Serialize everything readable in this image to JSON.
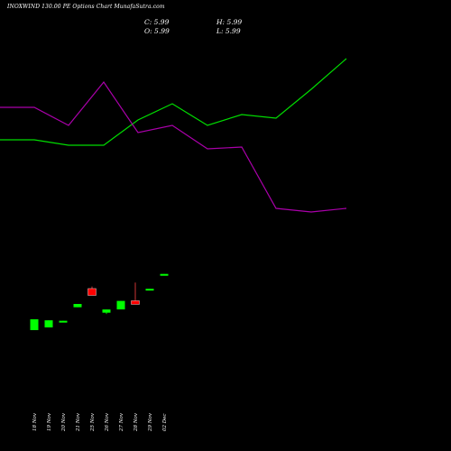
{
  "header": {
    "title": "INOXWIND 130.00 PE Options  Chart MunafaSutra.com"
  },
  "ohlc": {
    "close": "C: 5.99",
    "high": "H: 5.99",
    "open": "O: 5.99",
    "low": "L: 5.99"
  },
  "colors": {
    "background": "#000000",
    "up": "#00ff00",
    "down": "#ff0000",
    "green_line": "#00dd00",
    "purple_line": "#aa00aa"
  },
  "chart_data": {
    "type": "candlestick",
    "categories": [
      "18 Nov",
      "19 Nov",
      "20 Nov",
      "21 Nov",
      "25 Nov",
      "26 Nov",
      "27 Nov",
      "28 Nov",
      "29 Nov",
      "02 Dec"
    ],
    "candles": [
      {
        "open": 0.62,
        "close": 2.47,
        "high": 2.47,
        "low": 0.62,
        "dir": "up"
      },
      {
        "open": 1.08,
        "close": 2.29,
        "high": 2.29,
        "low": 1.08,
        "dir": "up"
      },
      {
        "open": 2.04,
        "close": 2.21,
        "high": 2.21,
        "low": 2.04,
        "dir": "up"
      },
      {
        "open": 4.52,
        "close": 5.08,
        "high": 5.08,
        "low": 4.52,
        "dir": "up"
      },
      {
        "open": 7.7,
        "close": 6.54,
        "high": 8.05,
        "low": 6.54,
        "dir": "down"
      },
      {
        "open": 3.59,
        "close": 4.14,
        "high": 4.14,
        "low": 3.37,
        "dir": "up"
      },
      {
        "open": 4.15,
        "close": 5.6,
        "high": 5.6,
        "low": 4.15,
        "dir": "up"
      },
      {
        "open": 5.63,
        "close": 5.01,
        "high": 8.74,
        "low": 5.01,
        "dir": "down"
      },
      {
        "open": 7.56,
        "close": 7.67,
        "high": 7.67,
        "low": 7.56,
        "dir": "up"
      },
      {
        "open": 10.1,
        "close": 10.2,
        "high": 10.2,
        "low": 10.1,
        "dir": "up"
      }
    ],
    "ylim": [
      0,
      20
    ],
    "lines": [
      {
        "color": "#00dd00",
        "points": [
          [
            0,
            0.5
          ],
          [
            38,
            0.5
          ],
          [
            76,
            0.47
          ],
          [
            115,
            0.47
          ],
          [
            153,
            0.61
          ],
          [
            191,
            0.7
          ],
          [
            230,
            0.58
          ],
          [
            268,
            0.64
          ],
          [
            306,
            0.62
          ],
          [
            345,
            0.78
          ],
          [
            384,
            0.95
          ]
        ]
      },
      {
        "color": "#aa00aa",
        "points": [
          [
            0,
            0.68
          ],
          [
            38,
            0.68
          ],
          [
            76,
            0.58
          ],
          [
            115,
            0.82
          ],
          [
            153,
            0.54
          ],
          [
            191,
            0.58
          ],
          [
            230,
            0.45
          ],
          [
            268,
            0.46
          ],
          [
            306,
            0.12
          ],
          [
            345,
            0.1
          ],
          [
            384,
            0.12
          ]
        ]
      }
    ]
  }
}
